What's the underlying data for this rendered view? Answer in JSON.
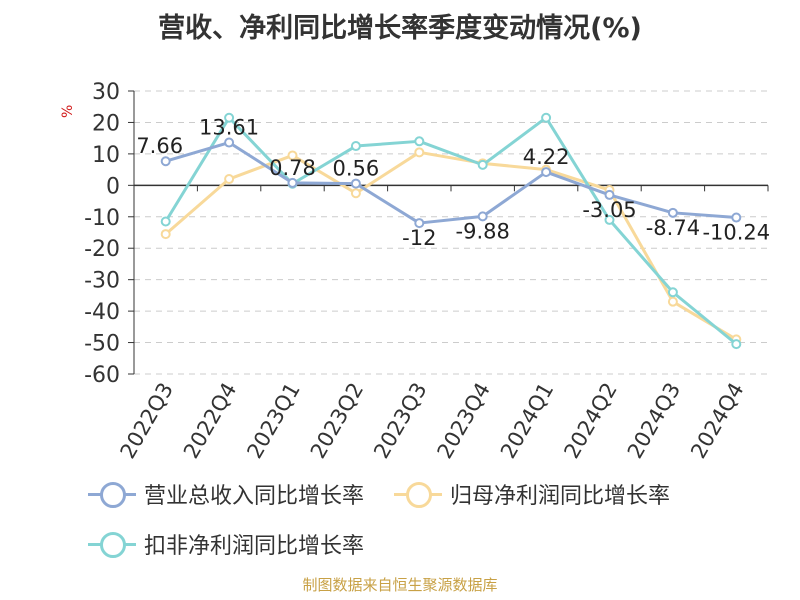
{
  "title": "营收、净利同比增长率季度变动情况(%)",
  "unit_label": "%",
  "footer": "制图数据来自恒生聚源数据库",
  "chart_data": {
    "type": "line",
    "categories": [
      "2022Q3",
      "2022Q4",
      "2023Q1",
      "2023Q2",
      "2023Q3",
      "2023Q4",
      "2024Q1",
      "2024Q2",
      "2024Q3",
      "2024Q4"
    ],
    "ylim": [
      -60,
      30
    ],
    "yticks": [
      30,
      20,
      10,
      0,
      -10,
      -20,
      -30,
      -40,
      -50,
      -60
    ],
    "grid": true,
    "legend_position": "bottom",
    "series": [
      {
        "name": "营业总收入同比增长率",
        "color": "#8ea8d4",
        "values": [
          7.66,
          13.61,
          0.78,
          0.56,
          -12,
          -9.88,
          4.22,
          -3.05,
          -8.74,
          -10.24
        ],
        "labels": [
          "7.66",
          "13.61",
          "0.78",
          "0.56",
          "-12",
          "-9.88",
          "4.22",
          "-3.05",
          "-8.74",
          "-10.24"
        ]
      },
      {
        "name": "归母净利润同比增长率",
        "color": "#f8d99a",
        "values": [
          -15.5,
          2,
          9.5,
          -2.5,
          10.5,
          7,
          5,
          -1.5,
          -37,
          -49
        ]
      },
      {
        "name": "扣非净利润同比增长率",
        "color": "#84d4d4",
        "values": [
          -11.5,
          21.5,
          0.5,
          12.5,
          14,
          6.5,
          21.5,
          -11,
          -34,
          -50.5
        ]
      }
    ]
  }
}
